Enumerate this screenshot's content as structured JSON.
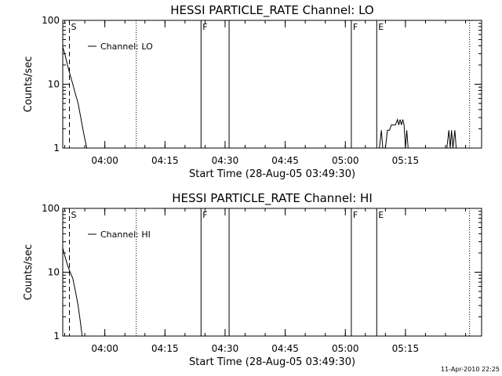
{
  "chart_data": [
    {
      "type": "line",
      "title": "HESSI PARTICLE_RATE Channel: LO",
      "xlabel": "Start Time (28-Aug-05 03:49:30)",
      "ylabel": "Counts/sec",
      "yscale": "log",
      "xlim": [
        "03:49:30",
        "05:34:00"
      ],
      "ylim": [
        1,
        100
      ],
      "x_ticks": [
        "04:00",
        "04:15",
        "04:30",
        "04:45",
        "05:00",
        "05:15"
      ],
      "y_ticks": [
        "1",
        "10",
        "100"
      ],
      "legend": {
        "position": "top-left",
        "entries": [
          "Channel: LO"
        ]
      },
      "series": [
        {
          "name": "Channel: LO",
          "points": [
            [
              "03:49:30",
              38
            ],
            [
              "03:50:00",
              30
            ],
            [
              "03:50:40",
              20
            ],
            [
              "03:51:20",
              14
            ],
            [
              "03:52:00",
              10
            ],
            [
              "03:52:40",
              7
            ],
            [
              "03:53:20",
              5
            ],
            [
              "03:54:00",
              3
            ],
            [
              "03:54:30",
              2
            ],
            [
              "03:55:00",
              1.4
            ],
            [
              "03:55:30",
              1
            ],
            [
              "05:08:30",
              1
            ],
            [
              "05:09:00",
              1.9
            ],
            [
              "05:09:20",
              1
            ],
            [
              "05:10:00",
              1
            ],
            [
              "05:10:30",
              1.9
            ],
            [
              "05:11:00",
              1.9
            ],
            [
              "05:11:30",
              2.3
            ],
            [
              "05:12:30",
              2.3
            ],
            [
              "05:13:00",
              2.8
            ],
            [
              "05:13:20",
              2.3
            ],
            [
              "05:13:40",
              2.8
            ],
            [
              "05:14:00",
              2.3
            ],
            [
              "05:14:20",
              2.8
            ],
            [
              "05:14:40",
              2.3
            ],
            [
              "05:15:00",
              1
            ],
            [
              "05:15:20",
              1.9
            ],
            [
              "05:15:40",
              1
            ],
            [
              "05:25:20",
              1
            ],
            [
              "05:25:50",
              1.9
            ],
            [
              "05:26:10",
              1
            ],
            [
              "05:26:30",
              1.9
            ],
            [
              "05:26:50",
              1
            ],
            [
              "05:27:20",
              1.9
            ],
            [
              "05:27:40",
              1
            ]
          ]
        }
      ],
      "markers": [
        {
          "label": "S",
          "time": "03:51:10",
          "style": "dashed"
        },
        {
          "label": "",
          "time": "04:07:50",
          "style": "dotted"
        },
        {
          "label": "F",
          "time": "04:24:00",
          "style": "solid"
        },
        {
          "label": "",
          "time": "04:31:00",
          "style": "solid"
        },
        {
          "label": "F",
          "time": "05:01:30",
          "style": "solid"
        },
        {
          "label": "E",
          "time": "05:07:50",
          "style": "solid"
        },
        {
          "label": "",
          "time": "05:31:00",
          "style": "dotted"
        }
      ]
    },
    {
      "type": "line",
      "title": "HESSI PARTICLE_RATE Channel: HI",
      "xlabel": "Start Time (28-Aug-05 03:49:30)",
      "ylabel": "Counts/sec",
      "yscale": "log",
      "xlim": [
        "03:49:30",
        "05:34:00"
      ],
      "ylim": [
        1,
        100
      ],
      "x_ticks": [
        "04:00",
        "04:15",
        "04:30",
        "04:45",
        "05:00",
        "05:15"
      ],
      "y_ticks": [
        "1",
        "10",
        "100"
      ],
      "legend": {
        "position": "top-left",
        "entries": [
          "Channel: HI"
        ]
      },
      "series": [
        {
          "name": "Channel: HI",
          "points": [
            [
              "03:49:30",
              24
            ],
            [
              "03:50:00",
              18
            ],
            [
              "03:50:40",
              13
            ],
            [
              "03:51:20",
              10
            ],
            [
              "03:52:00",
              8
            ],
            [
              "03:52:40",
              5
            ],
            [
              "03:53:20",
              3
            ],
            [
              "03:53:50",
              1.8
            ],
            [
              "03:54:20",
              1
            ]
          ]
        }
      ],
      "markers": [
        {
          "label": "S",
          "time": "03:51:10",
          "style": "dashed"
        },
        {
          "label": "",
          "time": "04:07:50",
          "style": "dotted"
        },
        {
          "label": "F",
          "time": "04:24:00",
          "style": "solid"
        },
        {
          "label": "",
          "time": "04:31:00",
          "style": "solid"
        },
        {
          "label": "F",
          "time": "05:01:30",
          "style": "solid"
        },
        {
          "label": "E",
          "time": "05:07:50",
          "style": "solid"
        },
        {
          "label": "",
          "time": "05:31:00",
          "style": "dotted"
        }
      ]
    }
  ],
  "footer": {
    "timestamp": "11-Apr-2010 22:25"
  }
}
